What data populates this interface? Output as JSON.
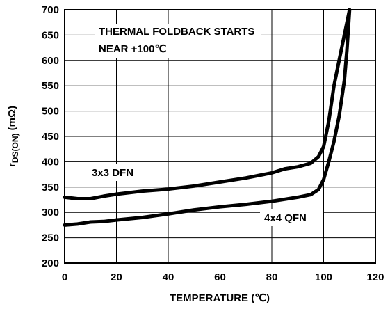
{
  "chart_data": {
    "type": "line",
    "xlabel": "TEMPERATURE (℃)",
    "ylabel_main": "r",
    "ylabel_sub": "DS(ON)",
    "ylabel_unit": " (mΩ)",
    "xlim": [
      0,
      120
    ],
    "ylim": [
      200,
      700
    ],
    "x_ticks": [
      0,
      20,
      40,
      60,
      80,
      100,
      120
    ],
    "y_ticks": [
      200,
      250,
      300,
      350,
      400,
      450,
      500,
      550,
      600,
      650,
      700
    ],
    "grid": true,
    "annotations": {
      "line1": "THERMAL FOLDBACK STARTS",
      "line2": "NEAR +100℃"
    },
    "series": [
      {
        "name": "3x3 DFN",
        "x": [
          0,
          5,
          10,
          15,
          20,
          30,
          40,
          50,
          60,
          70,
          80,
          85,
          90,
          95,
          98,
          100,
          102,
          104,
          106,
          108,
          110
        ],
        "y": [
          330,
          327,
          327,
          332,
          336,
          342,
          346,
          352,
          360,
          368,
          378,
          386,
          390,
          397,
          410,
          430,
          480,
          550,
          600,
          650,
          700
        ]
      },
      {
        "name": "4x4 QFN",
        "x": [
          0,
          5,
          10,
          15,
          20,
          30,
          40,
          50,
          60,
          70,
          80,
          85,
          90,
          95,
          98,
          100,
          102,
          104,
          106,
          108,
          109,
          110
        ],
        "y": [
          275,
          277,
          281,
          282,
          285,
          290,
          297,
          305,
          311,
          316,
          322,
          326,
          330,
          335,
          345,
          365,
          400,
          440,
          490,
          560,
          620,
          700
        ]
      }
    ]
  }
}
